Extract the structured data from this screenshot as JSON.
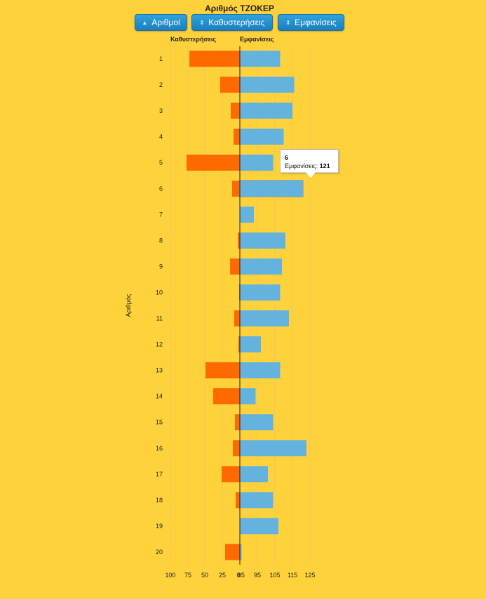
{
  "chart_data": {
    "type": "bar",
    "title": "Αριθμός ΤΖΟΚΕΡ",
    "ylabel": "Αριθμός",
    "left_label": "Καθυστερήσεις",
    "right_label": "Εμφανίσεις",
    "categories": [
      "1",
      "2",
      "3",
      "4",
      "5",
      "6",
      "7",
      "8",
      "9",
      "10",
      "11",
      "12",
      "13",
      "14",
      "15",
      "16",
      "17",
      "18",
      "19",
      "20"
    ],
    "series": [
      {
        "name": "Καθυστερήσεις",
        "color": "#FF6A00",
        "values": [
          72,
          28,
          13,
          9,
          76,
          11,
          0,
          3,
          14,
          1,
          8,
          2,
          49,
          38,
          7,
          10,
          26,
          6,
          0,
          21
        ]
      },
      {
        "name": "Εμφανίσεις",
        "color": "#63B3DE",
        "values": [
          108,
          116,
          115,
          110,
          104,
          121,
          93,
          111,
          109,
          108,
          113,
          97,
          108,
          94,
          104,
          123,
          101,
          104,
          107,
          86
        ]
      }
    ],
    "left_ticks": [
      "100",
      "75",
      "50",
      "25",
      "0"
    ],
    "right_ticks": [
      "85",
      "95",
      "105",
      "115",
      "125"
    ],
    "right_range": [
      85,
      125
    ],
    "left_range": [
      0,
      100
    ],
    "tooltip": {
      "number": "6",
      "label": "Εμφανίσεις:",
      "value": "121"
    }
  },
  "controls": {
    "numbers_label": "Αριθμοί",
    "delays_label": "Καθυστερήσεις",
    "apps_label": "Εμφανίσεις"
  }
}
